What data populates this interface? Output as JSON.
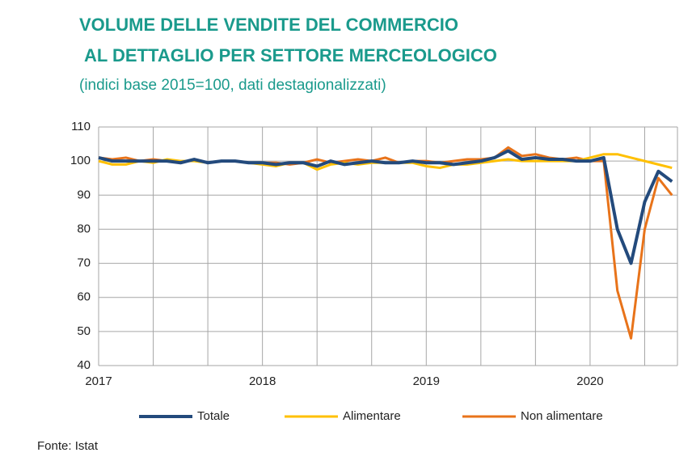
{
  "chart_data": {
    "type": "line",
    "title": "VOLUME DELLE VENDITE DEL COMMERCIO",
    "title_line2": "AL DETTAGLIO PER SETTORE MERCEOLOGICO",
    "subtitle": "(indici  base 2015=100, dati destagionalizzati)",
    "source": "Fonte: Istat",
    "categories": [
      "2017",
      null,
      null,
      null,
      null,
      null,
      null,
      null,
      null,
      null,
      null,
      null,
      "2018",
      null,
      null,
      null,
      null,
      null,
      null,
      null,
      null,
      null,
      null,
      null,
      "2019",
      null,
      null,
      null,
      null,
      null,
      null,
      null,
      null,
      null,
      null,
      null,
      "2020",
      null,
      null,
      null,
      null,
      null,
      null
    ],
    "ylim": [
      40,
      110
    ],
    "yticks": [
      40,
      50,
      60,
      70,
      80,
      90,
      100,
      110
    ],
    "grid": true,
    "legend": "bottom",
    "series": [
      {
        "name": "Totale",
        "color": "#234a7c",
        "values": [
          101,
          100,
          100,
          100,
          100,
          100,
          99.5,
          100.5,
          99.5,
          100,
          100,
          99.5,
          99.5,
          99,
          99.5,
          99.5,
          98.5,
          100,
          99,
          99.5,
          100,
          99.5,
          99.5,
          100,
          99.5,
          99.5,
          99,
          99.5,
          100,
          101,
          103,
          100.5,
          101,
          100.5,
          100.5,
          100,
          100,
          101,
          80,
          70,
          88,
          97,
          94
        ]
      },
      {
        "name": "Alimentare",
        "color": "#ffc000",
        "values": [
          100,
          99,
          99,
          100,
          99.5,
          100.5,
          100,
          100,
          99.5,
          100,
          100,
          99.5,
          99,
          98.5,
          99.5,
          99.5,
          97.5,
          99,
          99.5,
          99,
          99.5,
          99.5,
          99.5,
          99.5,
          98.5,
          98,
          99,
          99,
          99.5,
          100,
          100.5,
          100,
          100,
          100,
          100,
          100,
          101,
          102,
          102,
          101,
          100,
          99,
          98
        ]
      },
      {
        "name": "Non alimentare",
        "color": "#e8731a",
        "values": [
          101,
          100.5,
          101,
          100,
          100.5,
          100,
          99.5,
          100.5,
          99.5,
          100,
          100,
          99.5,
          99.5,
          99.5,
          99,
          99.5,
          100.5,
          99.5,
          100,
          100.5,
          100,
          101,
          99.5,
          100,
          100,
          99.5,
          100,
          100.5,
          100.5,
          101,
          104,
          101.5,
          102,
          101,
          100.5,
          101,
          100,
          100,
          62,
          48,
          80,
          95,
          90
        ]
      }
    ]
  }
}
